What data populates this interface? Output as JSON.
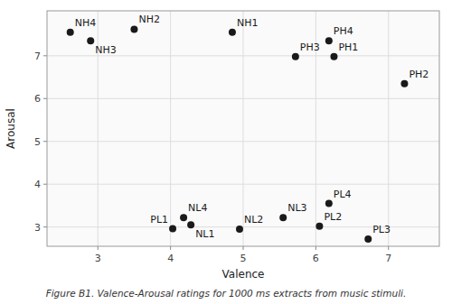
{
  "chart_data": {
    "type": "scatter",
    "x_label": "Valence",
    "y_label": "Arousal",
    "caption": "Figure B1. Valence-Arousal ratings for 1000 ms extracts from music stimuli.",
    "labels": [
      "NH4",
      "NH3",
      "NH2",
      "NH1",
      "PH4",
      "PH3",
      "PH1",
      "PH2",
      "NL4",
      "NL1",
      "PL1",
      "NL2",
      "NL3",
      "PL4",
      "PL2",
      "PL3"
    ],
    "x": [
      2.62,
      2.9,
      3.5,
      4.85,
      6.18,
      5.72,
      6.25,
      7.22,
      4.18,
      4.28,
      4.03,
      4.95,
      5.55,
      6.18,
      6.05,
      6.72
    ],
    "values": [
      7.55,
      7.35,
      7.62,
      7.55,
      7.35,
      6.98,
      6.98,
      6.35,
      3.22,
      3.05,
      2.96,
      2.95,
      3.22,
      3.55,
      3.02,
      2.72
    ],
    "color": "#1a1a1a",
    "xlim": [
      2.3,
      7.7
    ],
    "ylim": [
      2.55,
      8.05
    ],
    "xticks": [
      3,
      4,
      5,
      6,
      7
    ],
    "yticks": [
      3,
      4,
      5,
      6,
      7
    ],
    "grid": true
  }
}
